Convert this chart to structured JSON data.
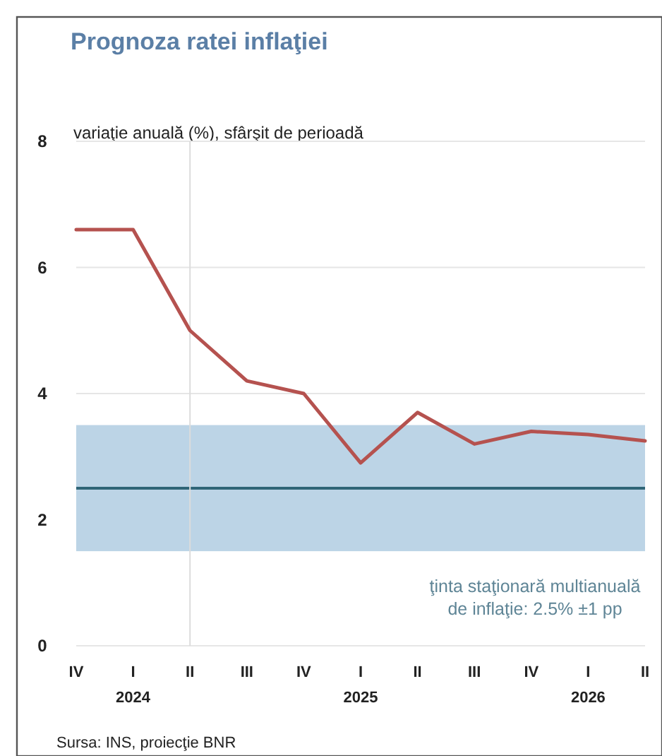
{
  "chart_data": {
    "type": "line",
    "title": "Prognoza ratei inflaţiei",
    "ylabel": "variaţie anuală (%), sfârşit de perioadă",
    "categories": [
      "IV",
      "I\n2024",
      "II",
      "III",
      "IV",
      "I\n2025",
      "II",
      "III",
      "IV",
      "I\n2026",
      "II"
    ],
    "series": [
      {
        "color": "#b5524f",
        "values": [
          6.6,
          6.6,
          5.0,
          4.2,
          4.0,
          2.9,
          3.7,
          3.2,
          3.4,
          3.35,
          3.25
        ]
      }
    ],
    "ylim": [
      0,
      8
    ],
    "yticks": [
      0,
      2,
      4,
      6,
      8
    ],
    "grid": "y",
    "bands": [
      {
        "axis": "y",
        "from": 1.5,
        "to": 3.5,
        "color": "#bcd4e6"
      }
    ],
    "ref_lines": [
      {
        "axis": "y",
        "value": 2.5,
        "color": "#2f6577"
      },
      {
        "axis": "x",
        "value": "II",
        "color": "#dcdcdc"
      }
    ],
    "annotations": [
      "ţinta staţionară multianuală\nde inflaţie: 2.5% ±1 pp",
      "Sursa: INS, proiecţie BNR"
    ]
  }
}
